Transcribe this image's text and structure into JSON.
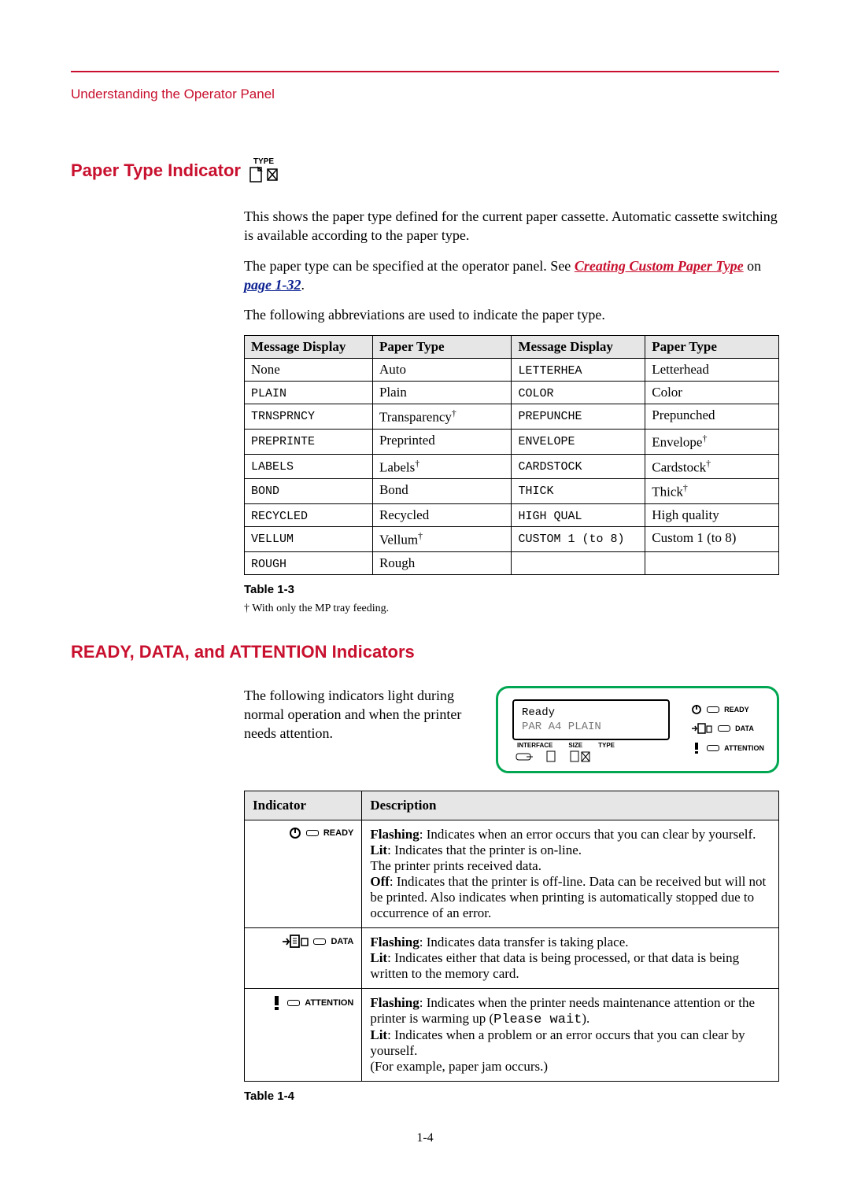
{
  "colors": {
    "accent": "#c8102e",
    "link_blue": "#0a1f8f",
    "panel_green": "#00a651",
    "header_bg": "#e6e6e6",
    "border": "#000000",
    "bg": "#ffffff"
  },
  "typography": {
    "body_family": "Georgia, serif",
    "heading_family": "Arial, sans-serif",
    "mono_family": "Courier New, monospace",
    "body_size_pt": 13,
    "heading_size_pt": 16
  },
  "breadcrumb": "Understanding the Operator Panel",
  "section1": {
    "title": "Paper Type Indicator",
    "icon_label": "TYPE",
    "p1": "This shows the paper type defined for the current paper cassette. Automatic cassette switching is available according to the paper type.",
    "p2a": "The paper type can be specified at the operator panel. See ",
    "p2_link": "Creating Custom Paper Type",
    "p2b": " on ",
    "p2_link2": "page 1-32",
    "p2c": ".",
    "p3": "The following abbreviations are used to indicate the paper type."
  },
  "table1": {
    "headers": [
      "Message Display",
      "Paper Type",
      "Message Display",
      "Paper Type"
    ],
    "rows": [
      [
        "None",
        "Auto",
        "LETTERHEA",
        "Letterhead"
      ],
      [
        "PLAIN",
        "Plain",
        "COLOR",
        "Color"
      ],
      [
        "TRNSPRNCY",
        "Transparency†",
        "PREPUNCHE",
        "Prepunched"
      ],
      [
        "PREPRINTE",
        "Preprinted",
        "ENVELOPE",
        "Envelope†"
      ],
      [
        "LABELS",
        "Labels†",
        "CARDSTOCK",
        "Cardstock†"
      ],
      [
        "BOND",
        "Bond",
        "THICK",
        "Thick†"
      ],
      [
        "RECYCLED",
        "Recycled",
        "HIGH QUAL",
        "High quality"
      ],
      [
        "VELLUM",
        "Vellum†",
        "CUSTOM 1 (to 8)",
        "Custom 1 (to 8)"
      ],
      [
        "ROUGH",
        "Rough",
        "",
        ""
      ]
    ],
    "caption": "Table 1-3",
    "footnote": "†   With only the MP tray feeding.",
    "mono_cols": [
      0,
      2
    ],
    "col_widths": [
      "24%",
      "26%",
      "25%",
      "25%"
    ]
  },
  "section2": {
    "title": "READY, DATA, and ATTENTION Indicators",
    "p1": "The following indicators light during normal operation and when the printer needs attention.",
    "panel": {
      "lcd_line1": "Ready",
      "lcd_line2": "PAR A4 PLAIN",
      "mini_labels": [
        "INTERFACE",
        "SIZE",
        "TYPE"
      ],
      "indicators": [
        "READY",
        "DATA",
        "ATTENTION"
      ]
    }
  },
  "table2": {
    "headers": [
      "Indicator",
      "Description"
    ],
    "col_widths": [
      "22%",
      "78%"
    ],
    "rows": [
      {
        "indicator": "READY",
        "desc": "<b>Flashing</b>: Indicates when an error occurs that you can clear by yourself.<br><b>Lit</b>: Indicates that the printer is on-line.<br>The printer prints received data.<br><b>Off</b>: Indicates that the printer is off-line. Data can be received but will not be printed. Also indicates when printing is automatically stopped due to occurrence of an error."
      },
      {
        "indicator": "DATA",
        "desc": "<b>Flashing</b>: Indicates data transfer is taking place.<br><b>Lit</b>: Indicates either that data is being processed, or that data is being written to the memory card."
      },
      {
        "indicator": "ATTENTION",
        "desc": "<b>Flashing</b>: Indicates when the printer needs maintenance attention or the printer is warming up (<span class='monoinline'>Please wait</span>).<br><b>Lit</b>: Indicates when a problem or an error occurs that you can clear by yourself.<br>(For example, paper jam occurs.)"
      }
    ],
    "caption": "Table 1-4"
  },
  "page_number": "1-4"
}
